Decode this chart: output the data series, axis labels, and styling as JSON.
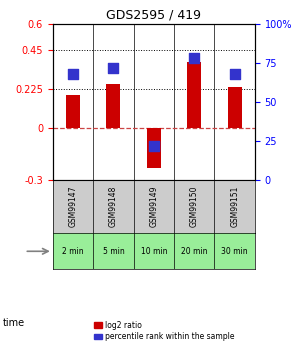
{
  "title": "GDS2595 / 419",
  "samples": [
    "GSM99147",
    "GSM99148",
    "GSM99149",
    "GSM99150",
    "GSM99151"
  ],
  "time_labels": [
    "2 min",
    "5 min",
    "10 min",
    "20 min",
    "30 min"
  ],
  "log2_ratio": [
    0.19,
    0.255,
    -0.23,
    0.38,
    0.235
  ],
  "percentile_rank": [
    68,
    72,
    22,
    78,
    68
  ],
  "ylim_left": [
    -0.3,
    0.6
  ],
  "ylim_right": [
    0,
    100
  ],
  "yticks_left": [
    -0.3,
    0,
    0.225,
    0.45,
    0.6
  ],
  "yticks_right": [
    0,
    25,
    50,
    75,
    100
  ],
  "hlines": [
    0.45,
    0.225
  ],
  "bar_color": "#cc0000",
  "dot_color": "#3333cc",
  "zero_line_color": "#cc4444",
  "background_color": "#ffffff",
  "plot_bg": "#ffffff",
  "legend_labels": [
    "log2 ratio",
    "percentile rank within the sample"
  ],
  "bar_width": 0.35,
  "dot_size": 60,
  "time_row_color": "#99ee99",
  "sample_row_color": "#cccccc"
}
